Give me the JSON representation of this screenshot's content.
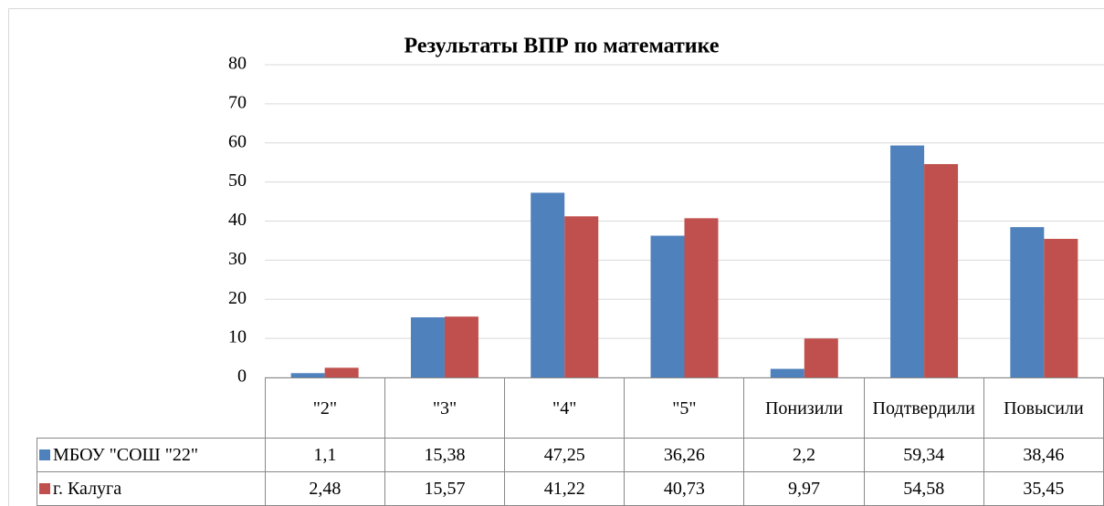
{
  "chart_data": {
    "type": "bar",
    "title": "Результаты ВПР по математике",
    "categories": [
      "\"2\"",
      "\"3\"",
      "\"4\"",
      "\"5\"",
      "Понизили",
      "Подтвердили",
      "Повысили"
    ],
    "series": [
      {
        "name": "МБОУ \"СОШ \"22\"",
        "color": "#4f81bd",
        "values": [
          1.1,
          15.38,
          47.25,
          36.26,
          2.2,
          59.34,
          38.46
        ],
        "value_labels": [
          "1,1",
          "15,38",
          "47,25",
          "36,26",
          "2,2",
          "59,34",
          "38,46"
        ]
      },
      {
        "name": "г. Калуга",
        "color": "#c0504d",
        "values": [
          2.48,
          15.57,
          41.22,
          40.73,
          9.97,
          54.58,
          35.45
        ],
        "value_labels": [
          "2,48",
          "15,57",
          "41,22",
          "40,73",
          "9,97",
          "54,58",
          "35,45"
        ]
      }
    ],
    "ylim": [
      0,
      80
    ],
    "yticks": [
      0,
      10,
      20,
      30,
      40,
      50,
      60,
      70,
      80
    ],
    "grid": true
  }
}
